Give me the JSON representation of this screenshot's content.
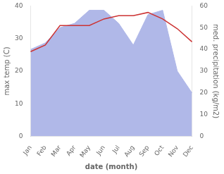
{
  "chart_data": {
    "type": "line",
    "categories": [
      "Jan",
      "Feb",
      "Mar",
      "Apr",
      "May",
      "Jun",
      "Jul",
      "Aug",
      "Sep",
      "Oct",
      "Nov",
      "Dec"
    ],
    "series": [
      {
        "type": "area",
        "color": "#b0b8e8",
        "axis": "y2",
        "values": [
          40,
          43,
          50,
          52,
          58,
          58,
          52,
          42,
          56,
          58,
          30,
          20
        ]
      },
      {
        "type": "line",
        "color": "#cc3333",
        "values": [
          26,
          28,
          34,
          34,
          34,
          36,
          37,
          37,
          38,
          36,
          33,
          29
        ]
      }
    ],
    "x_label": "date (month)",
    "y_label": "max temp (C)",
    "y2_label": "med. precipitation (kg/m2)",
    "ylim": [
      0,
      40
    ],
    "yticks": [
      0,
      10,
      20,
      30,
      40
    ],
    "y2lim": [
      0,
      60
    ],
    "y2ticks": [
      0,
      10,
      20,
      30,
      40,
      50,
      60
    ],
    "grid": false
  }
}
